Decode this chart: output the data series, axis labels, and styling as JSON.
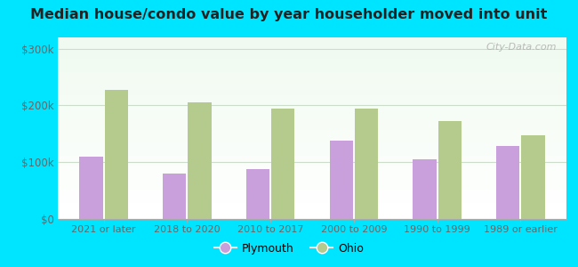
{
  "title": "Median house/condo value by year householder moved into unit",
  "categories": [
    "2021 or later",
    "2018 to 2020",
    "2010 to 2017",
    "2000 to 2009",
    "1990 to 1999",
    "1989 or earlier"
  ],
  "plymouth_values": [
    110000,
    80000,
    88000,
    138000,
    105000,
    128000
  ],
  "ohio_values": [
    228000,
    205000,
    195000,
    195000,
    172000,
    148000
  ],
  "plymouth_color": "#c9a0dc",
  "ohio_color": "#b5ca8d",
  "background_top": "#e8f5e8",
  "background_bottom": "#f8fff8",
  "outer_background": "#00e5ff",
  "yticks": [
    0,
    100000,
    200000,
    300000
  ],
  "ytick_labels": [
    "$0",
    "$100k",
    "$200k",
    "$300k"
  ],
  "ylim": [
    0,
    320000
  ],
  "watermark": "City-Data.com",
  "legend_labels": [
    "Plymouth",
    "Ohio"
  ],
  "bar_width": 0.28,
  "grid_color": "#ccddcc",
  "spine_color": "#aaaaaa"
}
